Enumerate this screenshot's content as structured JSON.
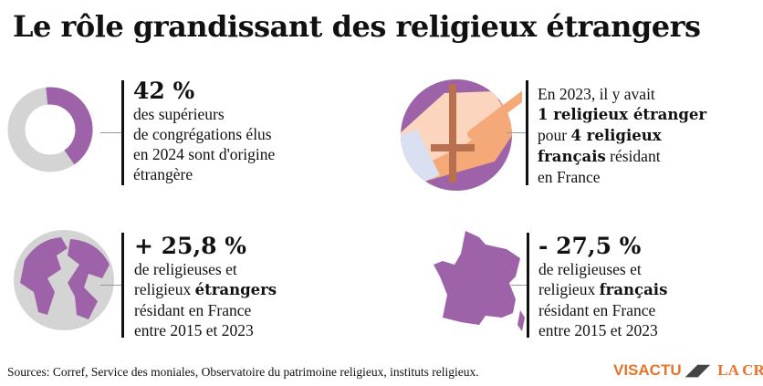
{
  "title": "Le rôle grandissant des religieux étrangers",
  "colors": {
    "accent": "#9d62a8",
    "neutral": "#d4d4d4",
    "logo": "#e8742a"
  },
  "chart_data": {
    "type": "pie",
    "variant": "donut",
    "values": [
      42,
      58
    ],
    "highlighted": 42,
    "colors": [
      "#9d62a8",
      "#d4d4d4"
    ]
  },
  "blocks": [
    {
      "big": "42 %",
      "lines": [
        "des supérieurs",
        "de congrégations élus",
        "en 2024 sont d'origine",
        "étrangère"
      ]
    },
    {
      "l1": "En 2023, il y avait",
      "l2": "1 religieux étranger",
      "l3a": "pour ",
      "l3b": "4 religieux",
      "l4a": "français",
      "l4b": " résidant",
      "l5": "en France",
      "icon": "hands-rosary-icon"
    },
    {
      "big": "+ 25,8 %",
      "l1": "de religieuses et",
      "l2a": "religieux ",
      "l2b": "étrangers",
      "l3": "résidant en France",
      "l4": "entre 2015 et 2023",
      "icon": "globe-icon"
    },
    {
      "big": "- 27,5 %",
      "l1": "de religieuses et",
      "l2a": "religieux ",
      "l2b": "français",
      "l3": "résidant en France",
      "l4": "entre 2015 et 2023",
      "icon": "france-map-icon"
    }
  ],
  "sources": "Sources: Corref, Service des moniales, Observatoire du patrimoine religieux, instituts religieux.",
  "logo": {
    "visactu": "VISACTU",
    "lacroix": "LA CROIX"
  }
}
